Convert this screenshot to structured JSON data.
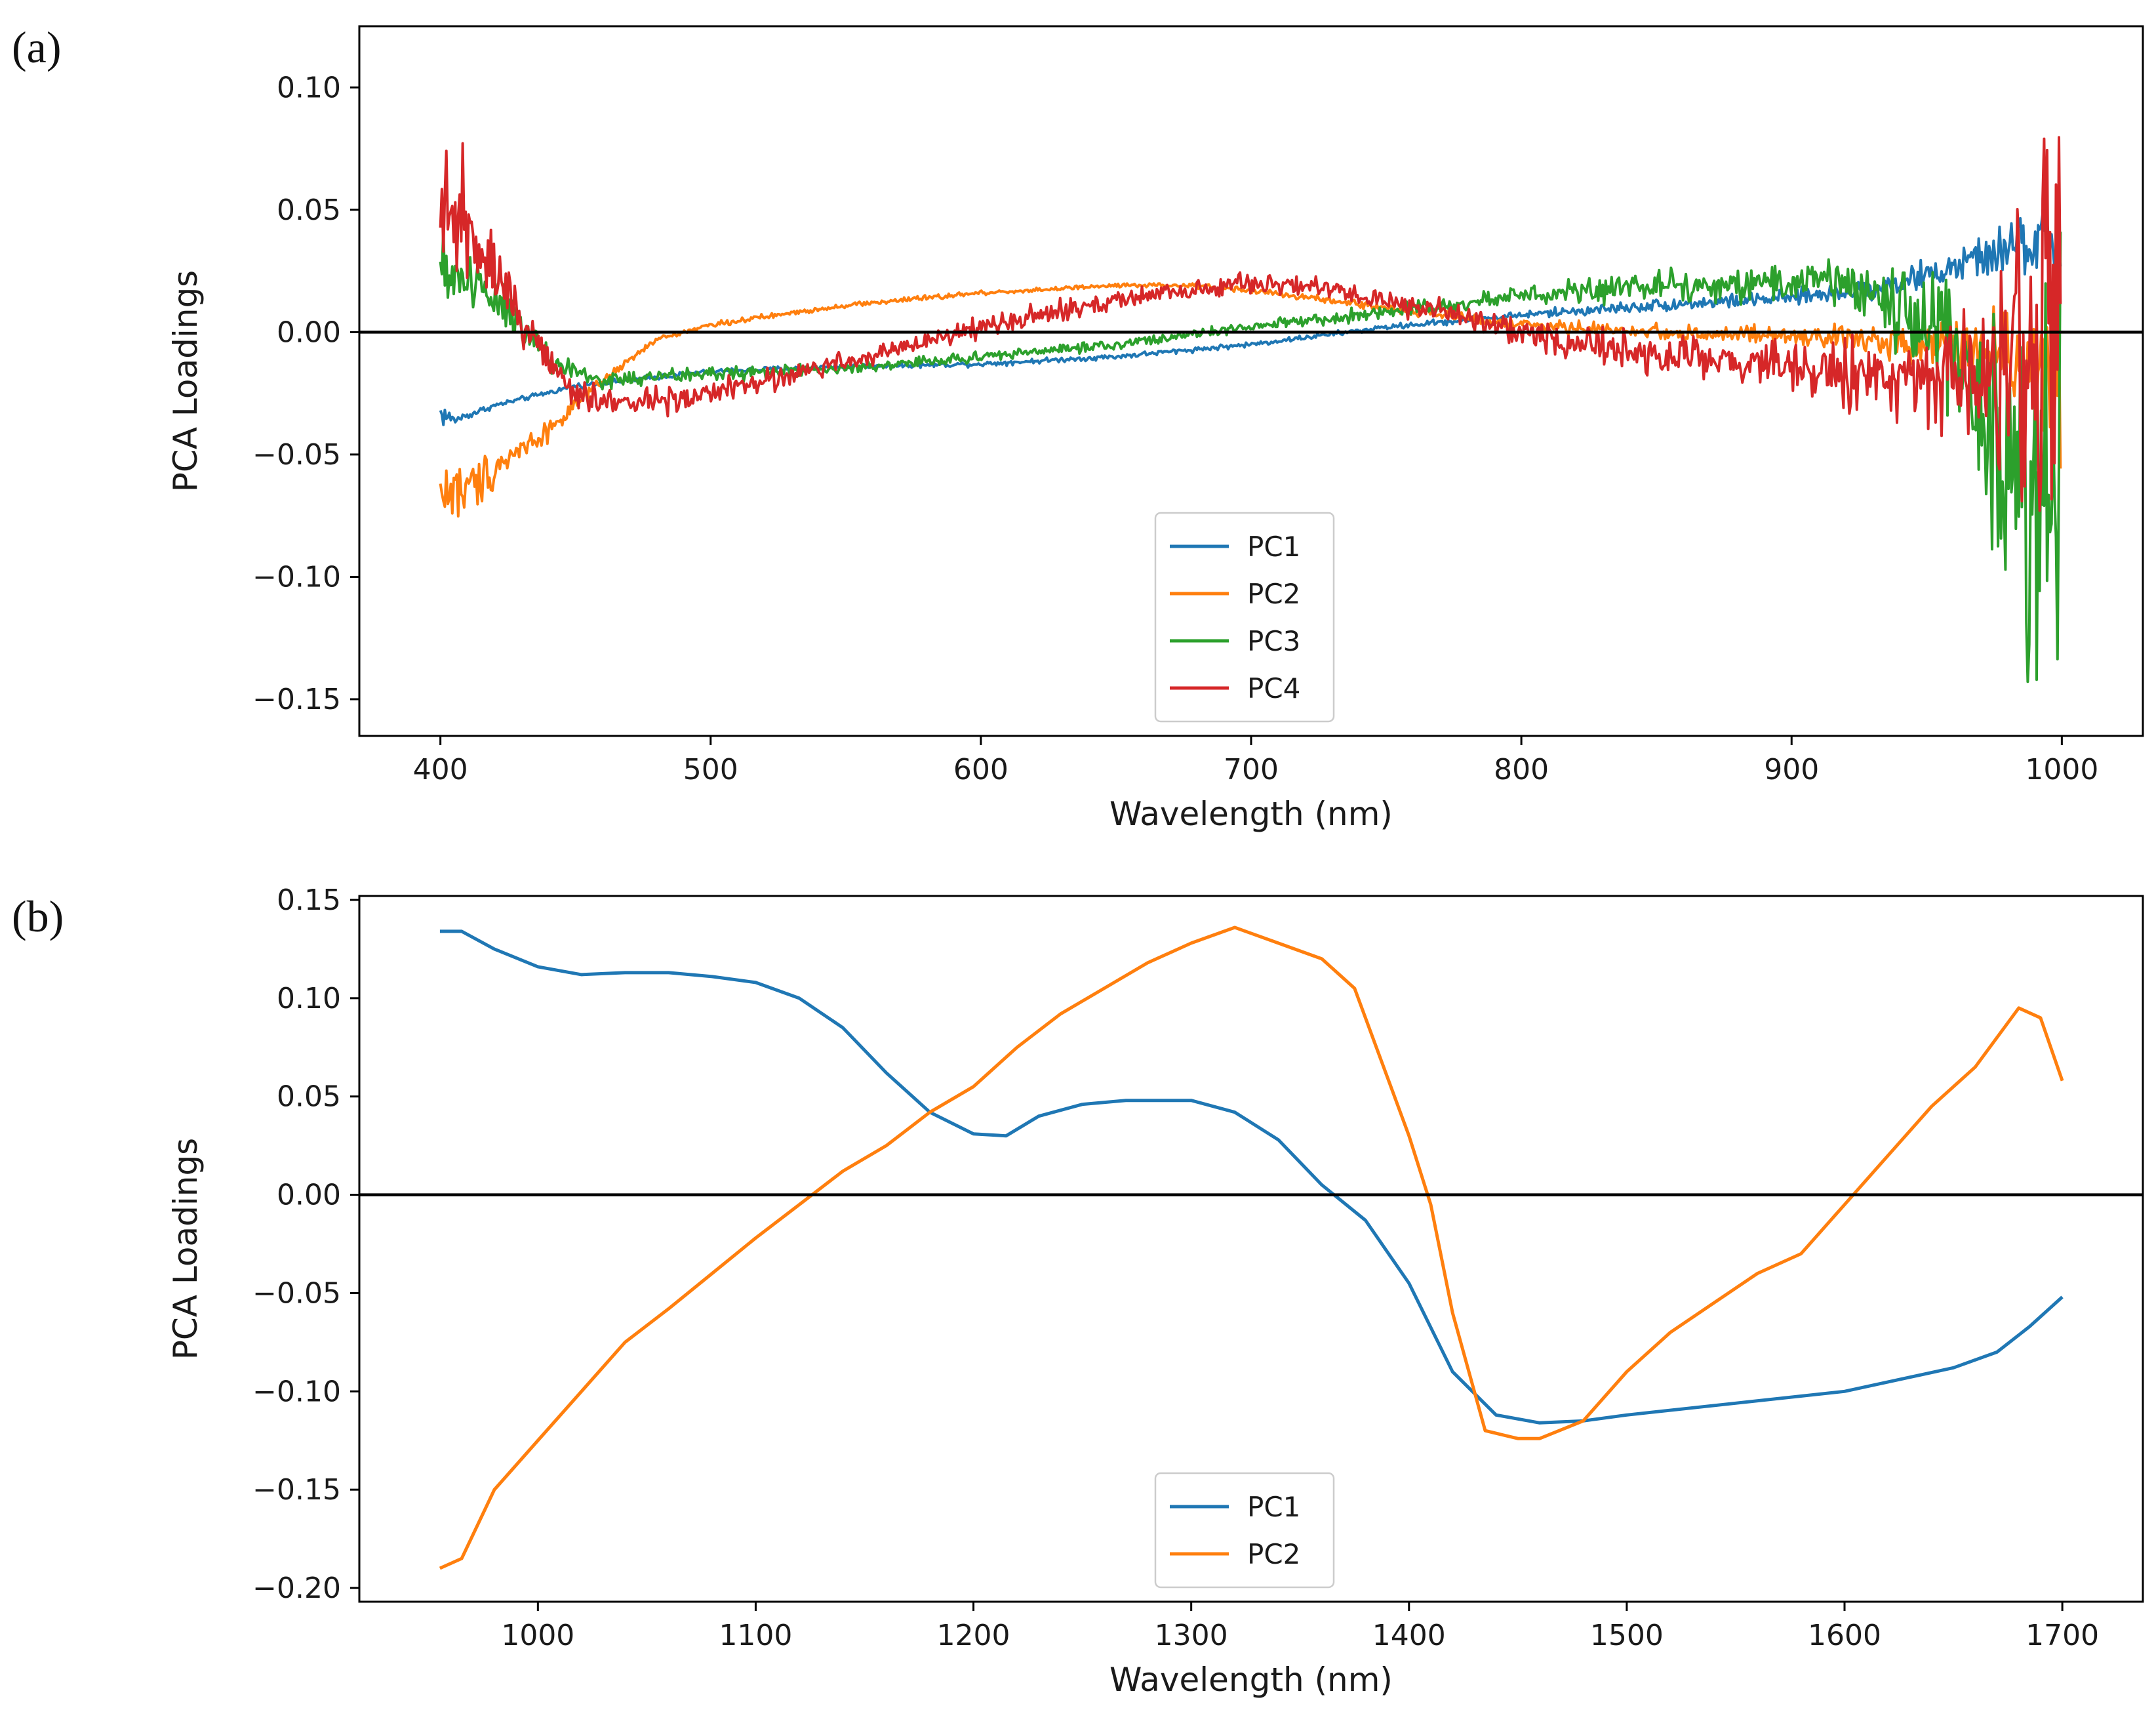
{
  "chart_data": [
    {
      "panel_label": "(a)",
      "type": "line",
      "xlabel": "Wavelength (nm)",
      "ylabel": "PCA Loadings",
      "xlim": [
        370,
        1030
      ],
      "ylim": [
        -0.165,
        0.125
      ],
      "xticks": [
        400,
        500,
        600,
        700,
        800,
        900,
        1000
      ],
      "xtick_labels": [
        "400",
        "500",
        "600",
        "700",
        "800",
        "900",
        "1000"
      ],
      "yticks": [
        -0.15,
        -0.1,
        -0.05,
        0.0,
        0.05,
        0.1
      ],
      "ytick_labels": [
        "−0.15",
        "−0.10",
        "−0.05",
        "0.00",
        "0.05",
        "0.10"
      ],
      "zero_line": true,
      "grid": false,
      "legend_position": "lower-center",
      "series": [
        {
          "name": "PC1",
          "color": "#1f77b4",
          "x": [
            400,
            405,
            420,
            450,
            500,
            550,
            600,
            650,
            700,
            750,
            800,
            850,
            900,
            930,
            950,
            970,
            985,
            1000
          ],
          "y": [
            -0.033,
            -0.036,
            -0.03,
            -0.022,
            -0.016,
            -0.014,
            -0.013,
            -0.01,
            -0.005,
            0.002,
            0.007,
            0.011,
            0.014,
            0.018,
            0.023,
            0.03,
            0.036,
            0.036
          ],
          "noise": [
            0.003,
            0.001,
            0.0005,
            0.0005,
            0.0005,
            0.0005,
            0.0005,
            0.0005,
            0.0005,
            0.0005,
            0.0008,
            0.0012,
            0.0015,
            0.002,
            0.003,
            0.004,
            0.006,
            0.008
          ]
        },
        {
          "name": "PC2",
          "color": "#ff7f0e",
          "x": [
            400,
            410,
            420,
            440,
            460,
            480,
            500,
            550,
            600,
            650,
            680,
            700,
            750,
            800,
            850,
            900,
            950,
            970,
            990,
            1000
          ],
          "y": [
            -0.065,
            -0.065,
            -0.055,
            -0.04,
            -0.02,
            -0.003,
            0.003,
            0.011,
            0.016,
            0.019,
            0.019,
            0.017,
            0.01,
            0.003,
            0.0,
            -0.002,
            -0.004,
            -0.006,
            -0.01,
            -0.03
          ],
          "noise": [
            0.007,
            0.006,
            0.004,
            0.002,
            0.001,
            0.0005,
            0.0005,
            0.0005,
            0.0005,
            0.0005,
            0.0005,
            0.0005,
            0.0008,
            0.0012,
            0.0015,
            0.002,
            0.004,
            0.006,
            0.012,
            0.02
          ]
        },
        {
          "name": "PC3",
          "color": "#2ca02c",
          "x": [
            400,
            410,
            420,
            430,
            440,
            460,
            500,
            550,
            600,
            650,
            700,
            750,
            800,
            850,
            900,
            920,
            940,
            960,
            980,
            990,
            1000
          ],
          "y": [
            0.025,
            0.022,
            0.015,
            0.005,
            -0.012,
            -0.02,
            -0.017,
            -0.015,
            -0.01,
            -0.005,
            0.002,
            0.008,
            0.015,
            0.019,
            0.021,
            0.02,
            0.01,
            -0.01,
            -0.04,
            -0.07,
            -0.08
          ],
          "noise": [
            0.007,
            0.007,
            0.006,
            0.005,
            0.003,
            0.002,
            0.0015,
            0.001,
            0.001,
            0.001,
            0.001,
            0.0015,
            0.002,
            0.003,
            0.004,
            0.005,
            0.008,
            0.014,
            0.03,
            0.045,
            0.05
          ]
        },
        {
          "name": "PC4",
          "color": "#d62728",
          "x": [
            400,
            405,
            415,
            425,
            435,
            450,
            470,
            500,
            550,
            600,
            650,
            700,
            730,
            750,
            800,
            850,
            900,
            950,
            970,
            985,
            995,
            1000
          ],
          "y": [
            0.035,
            0.05,
            0.04,
            0.015,
            -0.005,
            -0.025,
            -0.03,
            -0.025,
            -0.012,
            0.002,
            0.013,
            0.02,
            0.018,
            0.013,
            0.0,
            -0.01,
            -0.015,
            -0.02,
            -0.015,
            -0.01,
            0.0,
            0.0
          ],
          "noise": [
            0.012,
            0.012,
            0.009,
            0.006,
            0.004,
            0.003,
            0.003,
            0.0025,
            0.002,
            0.002,
            0.002,
            0.002,
            0.002,
            0.002,
            0.003,
            0.004,
            0.005,
            0.008,
            0.015,
            0.035,
            0.05,
            0.055
          ]
        }
      ]
    },
    {
      "panel_label": "(b)",
      "type": "line",
      "xlabel": "Wavelength (nm)",
      "ylabel": "PCA Loadings",
      "xlim": [
        918,
        1737
      ],
      "ylim": [
        -0.207,
        0.152
      ],
      "xticks": [
        1000,
        1100,
        1200,
        1300,
        1400,
        1500,
        1600,
        1700
      ],
      "xtick_labels": [
        "1000",
        "1100",
        "1200",
        "1300",
        "1400",
        "1500",
        "1600",
        "1700"
      ],
      "yticks": [
        -0.2,
        -0.15,
        -0.1,
        -0.05,
        0.0,
        0.05,
        0.1,
        0.15
      ],
      "ytick_labels": [
        "−0.20",
        "−0.15",
        "−0.10",
        "−0.05",
        "0.00",
        "0.05",
        "0.10",
        "0.15"
      ],
      "zero_line": true,
      "grid": false,
      "legend_position": "lower-center",
      "series": [
        {
          "name": "PC1",
          "color": "#1f77b4",
          "x": [
            955,
            965,
            980,
            1000,
            1020,
            1040,
            1060,
            1080,
            1100,
            1120,
            1140,
            1160,
            1180,
            1200,
            1215,
            1230,
            1250,
            1270,
            1300,
            1320,
            1340,
            1360,
            1380,
            1400,
            1420,
            1440,
            1460,
            1480,
            1500,
            1550,
            1600,
            1650,
            1670,
            1685,
            1700
          ],
          "y": [
            0.134,
            0.134,
            0.125,
            0.116,
            0.112,
            0.113,
            0.113,
            0.111,
            0.108,
            0.1,
            0.085,
            0.062,
            0.042,
            0.031,
            0.03,
            0.04,
            0.046,
            0.048,
            0.048,
            0.042,
            0.028,
            0.005,
            -0.013,
            -0.045,
            -0.09,
            -0.112,
            -0.116,
            -0.115,
            -0.112,
            -0.106,
            -0.1,
            -0.088,
            -0.08,
            -0.067,
            -0.052
          ]
        },
        {
          "name": "PC2",
          "color": "#ff7f0e",
          "x": [
            955,
            965,
            980,
            1000,
            1020,
            1040,
            1060,
            1080,
            1100,
            1120,
            1140,
            1160,
            1180,
            1200,
            1220,
            1240,
            1260,
            1280,
            1300,
            1320,
            1340,
            1360,
            1375,
            1390,
            1400,
            1410,
            1420,
            1435,
            1450,
            1460,
            1480,
            1500,
            1520,
            1540,
            1560,
            1580,
            1600,
            1620,
            1640,
            1660,
            1680,
            1690,
            1700
          ],
          "y": [
            -0.19,
            -0.185,
            -0.15,
            -0.125,
            -0.1,
            -0.075,
            -0.058,
            -0.04,
            -0.022,
            -0.005,
            0.012,
            0.025,
            0.042,
            0.055,
            0.075,
            0.092,
            0.105,
            0.118,
            0.128,
            0.136,
            0.128,
            0.12,
            0.105,
            0.06,
            0.03,
            -0.005,
            -0.06,
            -0.12,
            -0.124,
            -0.124,
            -0.115,
            -0.09,
            -0.07,
            -0.055,
            -0.04,
            -0.03,
            -0.005,
            0.02,
            0.045,
            0.065,
            0.095,
            0.09,
            0.058
          ]
        }
      ]
    }
  ]
}
